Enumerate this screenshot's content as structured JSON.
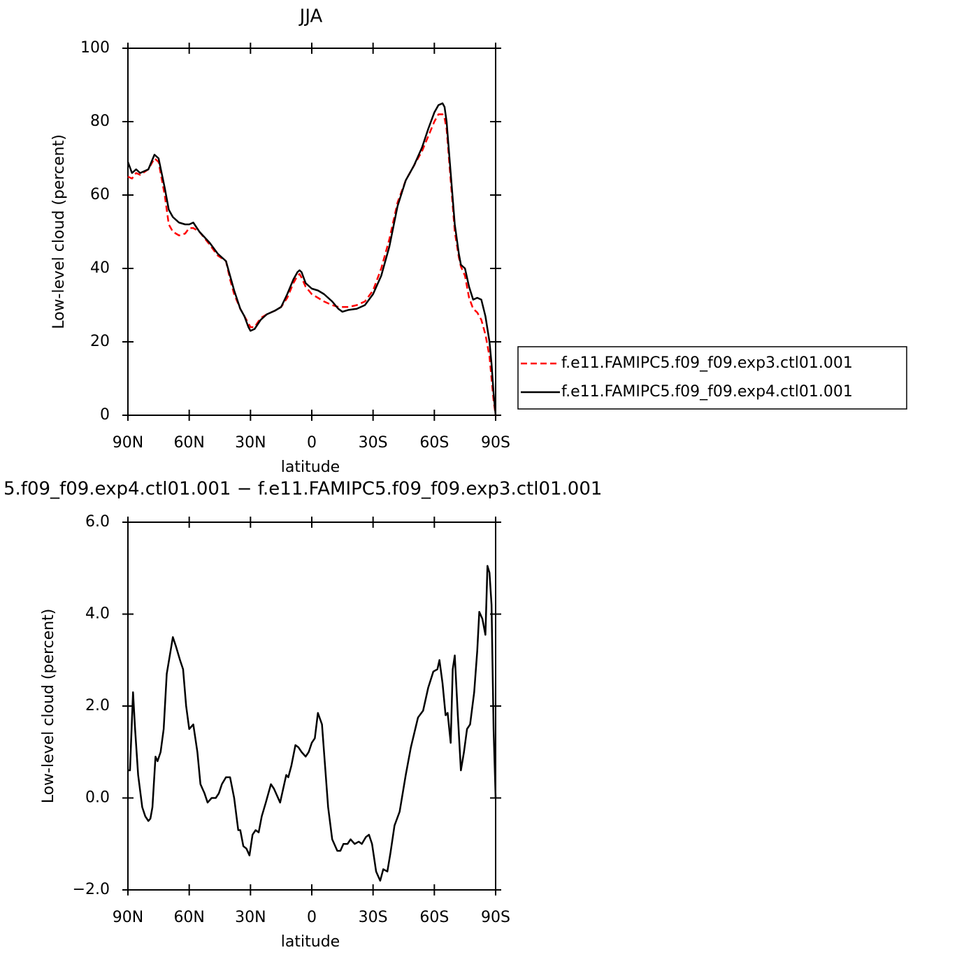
{
  "chart_data": [
    {
      "type": "line",
      "title": "JJA",
      "x_label": "latitude",
      "y_label": "Low-level cloud (percent)",
      "xlim": [
        90,
        -90
      ],
      "xticks": [
        {
          "value": 90,
          "label": "90N"
        },
        {
          "value": 60,
          "label": "60N"
        },
        {
          "value": 30,
          "label": "30N"
        },
        0,
        {
          "value": -30,
          "label": "30S"
        },
        {
          "value": -60,
          "label": "60S"
        },
        {
          "value": -90,
          "label": "90S"
        }
      ],
      "ylim": [
        0,
        100
      ],
      "yticks": [
        0,
        20,
        40,
        60,
        80,
        100
      ],
      "legend": "right",
      "x": [
        90,
        88,
        86,
        84,
        80,
        77,
        75,
        72,
        70,
        68,
        65,
        62,
        60,
        58,
        55,
        50,
        46,
        42,
        40,
        38,
        35,
        33,
        31,
        30,
        28,
        25,
        22,
        18,
        15,
        12,
        9,
        7,
        6,
        5,
        3,
        0,
        -3,
        -6,
        -10,
        -13,
        -15,
        -18,
        -22,
        -26,
        -30,
        -34,
        -38,
        -42,
        -46,
        -50,
        -54,
        -57,
        -60,
        -62,
        -64,
        -65,
        -66,
        -68,
        -70,
        -72,
        -73,
        -75,
        -77,
        -79,
        -81,
        -83,
        -85,
        -87,
        -88,
        -89,
        -90
      ],
      "series": [
        {
          "name": "f.e11.FAMIPC5.f09_f09.exp3.ctl01.001",
          "color": "#ff0000",
          "style": "dashed",
          "values": [
            65,
            64.5,
            66,
            65.5,
            67,
            70,
            69,
            60,
            52,
            50,
            49,
            49.5,
            51,
            51,
            50,
            46.5,
            43.5,
            42,
            37,
            33,
            29,
            27,
            25,
            24,
            24,
            26.5,
            27.5,
            28.5,
            29.5,
            32,
            36,
            38,
            38.5,
            37.5,
            35,
            33,
            32,
            31,
            30,
            29.5,
            29.5,
            29.5,
            30,
            31,
            34,
            40,
            48,
            58,
            64,
            68,
            72,
            76,
            80,
            82,
            82,
            81,
            78,
            64,
            50,
            43,
            40.5,
            38,
            32,
            29,
            28,
            26,
            22,
            16,
            10,
            4,
            0
          ]
        },
        {
          "name": "f.e11.FAMIPC5.f09_f09.exp4.ctl01.001",
          "color": "#000000",
          "style": "solid",
          "values": [
            69,
            66,
            67,
            66,
            67,
            71,
            70,
            62,
            56,
            54,
            52.5,
            52,
            52,
            52.5,
            50,
            47,
            44,
            42,
            38,
            34,
            29,
            27,
            24,
            23,
            23.5,
            26,
            27.5,
            28.5,
            29.5,
            33,
            37,
            39,
            39.5,
            39,
            36,
            34.5,
            34,
            33,
            31,
            29,
            28.2,
            28.7,
            29,
            30,
            33,
            38,
            46,
            57,
            64,
            68,
            73,
            78,
            82.5,
            84.5,
            85,
            84,
            80,
            66,
            52,
            44,
            41,
            40,
            35,
            31.5,
            32,
            31.5,
            27,
            20,
            14,
            6,
            0
          ]
        }
      ]
    },
    {
      "type": "line",
      "title": "5.f09_f09.exp4.ctl01.001 − f.e11.FAMIPC5.f09_f09.exp3.ctl01.001",
      "x_label": "latitude",
      "y_label": "Low-level cloud (percent)",
      "xlim": [
        90,
        -90
      ],
      "xticks": [
        {
          "value": 90,
          "label": "90N"
        },
        {
          "value": 60,
          "label": "60N"
        },
        {
          "value": 30,
          "label": "30N"
        },
        0,
        {
          "value": -30,
          "label": "30S"
        },
        {
          "value": -60,
          "label": "60S"
        },
        {
          "value": -90,
          "label": "90S"
        }
      ],
      "ylim": [
        -2,
        6
      ],
      "yticks": [
        {
          "value": -2,
          "label": "−2.0"
        },
        {
          "value": 0,
          "label": "0.0"
        },
        {
          "value": 2,
          "label": "2.0"
        },
        {
          "value": 4,
          "label": "4.0"
        },
        {
          "value": 6,
          "label": "6.0"
        }
      ],
      "x": [
        90,
        89,
        87.5,
        86.5,
        85,
        83,
        81.5,
        80,
        79,
        78,
        76.5,
        75.5,
        74,
        72.5,
        71,
        69.5,
        68,
        66.5,
        64.5,
        63,
        61.5,
        60,
        58,
        56,
        54.5,
        52.5,
        51,
        49,
        47,
        45.5,
        44,
        42,
        40,
        38,
        36,
        35,
        33.5,
        32,
        30.5,
        29,
        27.5,
        26,
        24.5,
        22.5,
        20,
        18.5,
        15.5,
        14,
        12.5,
        11.5,
        10,
        8,
        6.5,
        5,
        3,
        1.5,
        0,
        -1.5,
        -3,
        -5,
        -6.5,
        -8,
        -10,
        -12.5,
        -14,
        -15.5,
        -17.5,
        -19,
        -21,
        -23,
        -24.5,
        -26.5,
        -28,
        -29.5,
        -31.5,
        -33.5,
        -35,
        -37,
        -38.5,
        -40.5,
        -43,
        -46,
        -48.5,
        -52,
        -54.5,
        -57,
        -59.5,
        -61.5,
        -62.5,
        -64,
        -65.5,
        -66.5,
        -68,
        -69,
        -70,
        -71.5,
        -73,
        -74.5,
        -76,
        -77.5,
        -79.5,
        -81,
        -82,
        -83.5,
        -85,
        -86,
        -87,
        -88,
        -89,
        -90
      ],
      "series": [
        {
          "color": "#000000",
          "style": "solid",
          "values": [
            0.6,
            0.6,
            2.3,
            1.5,
            0.5,
            -0.2,
            -0.4,
            -0.5,
            -0.45,
            -0.2,
            0.9,
            0.8,
            1.0,
            1.5,
            2.7,
            3.1,
            3.5,
            3.3,
            3.0,
            2.8,
            2.0,
            1.5,
            1.6,
            1.0,
            0.3,
            0.1,
            -0.1,
            0.0,
            0.0,
            0.1,
            0.3,
            0.45,
            0.45,
            0.0,
            -0.7,
            -0.7,
            -1.05,
            -1.1,
            -1.25,
            -0.8,
            -0.7,
            -0.75,
            -0.4,
            -0.1,
            0.3,
            0.2,
            -0.1,
            0.2,
            0.5,
            0.45,
            0.7,
            1.15,
            1.1,
            1.0,
            0.9,
            1.0,
            1.2,
            1.3,
            1.85,
            1.6,
            0.7,
            -0.2,
            -0.9,
            -1.15,
            -1.15,
            -1.0,
            -1.0,
            -0.9,
            -1.0,
            -0.95,
            -1.0,
            -0.85,
            -0.8,
            -1.0,
            -1.6,
            -1.8,
            -1.55,
            -1.6,
            -1.2,
            -0.6,
            -0.3,
            0.5,
            1.1,
            1.75,
            1.9,
            2.4,
            2.75,
            2.8,
            3.0,
            2.5,
            1.8,
            1.85,
            1.2,
            2.8,
            3.1,
            1.8,
            0.6,
            1.0,
            1.5,
            1.6,
            2.3,
            3.2,
            4.05,
            3.9,
            3.55,
            5.05,
            4.9,
            4.2,
            1.5,
            0.0
          ]
        }
      ]
    }
  ]
}
